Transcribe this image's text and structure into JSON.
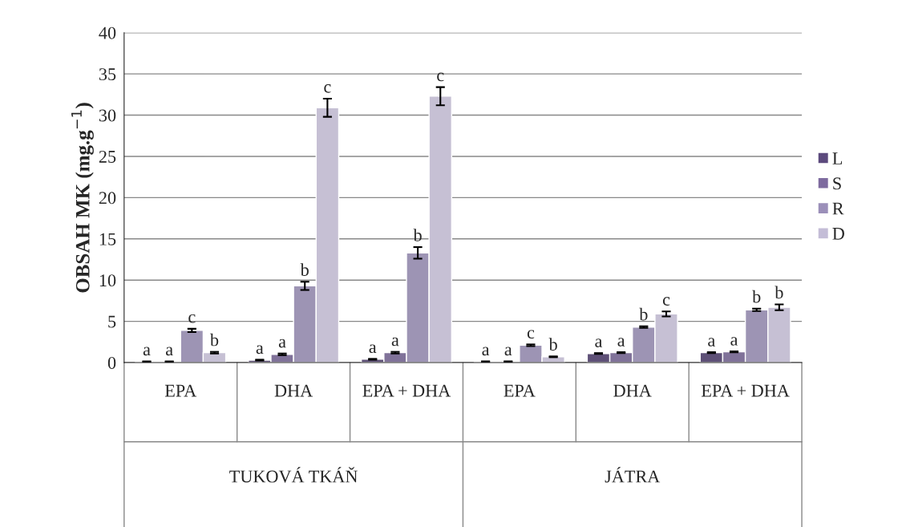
{
  "chart_data": {
    "type": "bar",
    "ylabel": "OBSAH MK (mg.g$^{−1}$)",
    "categories": [
      "EPA",
      "DHA",
      "EPA + DHA",
      "EPA",
      "DHA",
      "EPA + DHA"
    ],
    "annotations": [
      "TUKOVÁ TKÁŇ",
      "JÁTRA"
    ],
    "series": [
      {
        "name": "L",
        "color": "#5c4a7d",
        "values": [
          0.1,
          0.3,
          0.4,
          0.1,
          1.1,
          1.2
        ],
        "errors": [
          0.05,
          0.05,
          0.05,
          0.05,
          0.05,
          0.05
        ],
        "value_labels": [
          "a",
          "a",
          "a",
          "a",
          "a",
          "a"
        ]
      },
      {
        "name": "S",
        "color": "#7e6b9f",
        "values": [
          0.1,
          1.0,
          1.2,
          0.1,
          1.2,
          1.3
        ],
        "errors": [
          0.05,
          0.1,
          0.1,
          0.05,
          0.05,
          0.05
        ],
        "value_labels": [
          "a",
          "a",
          "a",
          "a",
          "a",
          "a"
        ]
      },
      {
        "name": "R",
        "color": "#9b8fb9",
        "values": [
          3.9,
          9.3,
          13.3,
          2.1,
          4.3,
          6.4
        ],
        "errors": [
          0.2,
          0.5,
          0.7,
          0.1,
          0.1,
          0.15
        ],
        "value_labels": [
          "c",
          "b",
          "b",
          "c",
          "b",
          "b"
        ]
      },
      {
        "name": "D",
        "color": "#c4bdd7",
        "values": [
          1.2,
          30.9,
          32.3,
          0.7,
          5.9,
          6.7
        ],
        "errors": [
          0.1,
          1.1,
          1.1,
          0.05,
          0.3,
          0.35
        ],
        "value_labels": [
          "b",
          "c",
          "c",
          "b",
          "c",
          "b"
        ]
      }
    ],
    "ylim": [
      0,
      40
    ],
    "yticks": [
      0,
      5,
      10,
      15,
      20,
      25,
      30,
      35,
      40
    ],
    "grid": "y",
    "legend": "right"
  }
}
